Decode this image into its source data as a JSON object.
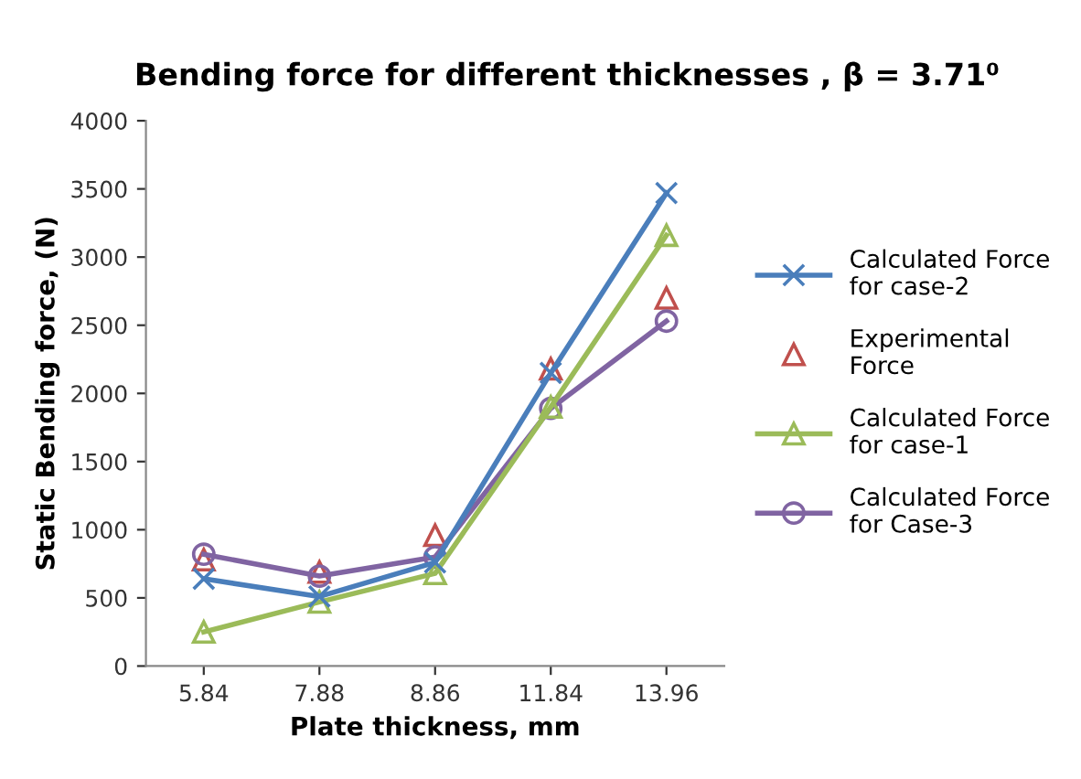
{
  "chart_data": {
    "type": "line",
    "title": "Bending force for different thicknesses , β = 3.71⁰",
    "xlabel": "Plate thickness, mm",
    "ylabel": "Static Bending force, (N)",
    "categories": [
      "5.84",
      "7.88",
      "8.86",
      "11.84",
      "13.96"
    ],
    "series": [
      {
        "name": "Calculated Force for case-2",
        "color": "#4a7ebb",
        "marker": "cross",
        "values": [
          640,
          510,
          760,
          2150,
          3470
        ]
      },
      {
        "name": "Experimental Force",
        "type": "scatter",
        "color": "#c0504d",
        "marker": "triangle",
        "values": [
          780,
          690,
          960,
          2180,
          2700
        ]
      },
      {
        "name": "Calculated Force for case-1",
        "color": "#9bbb59",
        "marker": "triangle",
        "values": [
          250,
          470,
          680,
          1900,
          3160
        ]
      },
      {
        "name": "Calculated Force for Case-3",
        "color": "#8064a2",
        "marker": "circle",
        "values": [
          820,
          660,
          800,
          1890,
          2530
        ]
      }
    ],
    "ylim": [
      0,
      4000
    ],
    "yticks": [
      0,
      500,
      1000,
      1500,
      2000,
      2500,
      3000,
      3500,
      4000
    ],
    "grid": false,
    "legend": "right"
  }
}
